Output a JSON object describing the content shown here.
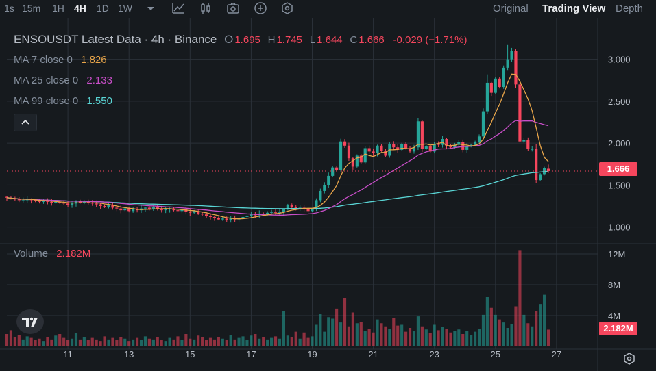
{
  "toolbar": {
    "timeframes": [
      "1s",
      "15m",
      "1H",
      "4H",
      "1D",
      "1W"
    ],
    "active_timeframe": "4H",
    "views": [
      "Original",
      "Trading View",
      "Depth"
    ],
    "active_view": "Trading View",
    "tools": [
      "chevron-down-icon",
      "indicator-icon",
      "candle-type-icon",
      "camera-icon",
      "plus-circle-icon",
      "settings-hex-icon"
    ]
  },
  "legend": {
    "title": "ENSOUSDT Latest Data · 4h · Binance",
    "ohlc": {
      "o_label": "O",
      "o": "1.695",
      "h_label": "H",
      "h": "1.745",
      "l_label": "L",
      "l": "1.644",
      "c_label": "C",
      "c": "1.666",
      "change": "-0.029 (−1.71%)"
    },
    "ma7": {
      "label": "MA 7 close 0",
      "value": "1.826",
      "color": "#e8a54a"
    },
    "ma25": {
      "label": "MA 25 close 0",
      "value": "2.133",
      "color": "#c84ec8"
    },
    "ma99": {
      "label": "MA 99 close 0",
      "value": "1.550",
      "color": "#5ad6d6"
    },
    "volume_label": "Volume",
    "volume_value": "2.182M"
  },
  "price_badge": "1.666",
  "volume_badge": "2.182M",
  "colors": {
    "up": "#26a69a",
    "down": "#f6465d",
    "bg": "#161a1e",
    "grid": "#2b3139"
  },
  "chart_data": {
    "type": "candlestick",
    "x_tick_labels": [
      "11",
      "13",
      "15",
      "17",
      "19",
      "21",
      "23",
      "25",
      "27"
    ],
    "x_ticks_at_candle": [
      15,
      30,
      45,
      60,
      75,
      90,
      105,
      120,
      135
    ],
    "y_ticks": [
      1.0,
      1.5,
      2.0,
      2.5,
      3.0
    ],
    "y_tick_labels": [
      "1.000",
      "1.500",
      "2.000",
      "2.500",
      "3.000"
    ],
    "ylim": [
      0.85,
      3.25
    ],
    "volume_ticks": [
      4,
      8,
      12
    ],
    "volume_tick_labels": [
      "4M",
      "8M",
      "12M"
    ],
    "volume_max": 12.8,
    "last_price": 1.666,
    "closes": [
      1.35,
      1.34,
      1.33,
      1.32,
      1.32,
      1.33,
      1.32,
      1.31,
      1.3,
      1.31,
      1.3,
      1.29,
      1.3,
      1.29,
      1.28,
      1.26,
      1.28,
      1.31,
      1.29,
      1.3,
      1.29,
      1.28,
      1.27,
      1.25,
      1.24,
      1.26,
      1.23,
      1.22,
      1.2,
      1.22,
      1.19,
      1.21,
      1.2,
      1.22,
      1.23,
      1.21,
      1.24,
      1.22,
      1.2,
      1.21,
      1.22,
      1.2,
      1.19,
      1.21,
      1.18,
      1.17,
      1.19,
      1.16,
      1.15,
      1.13,
      1.12,
      1.11,
      1.09,
      1.1,
      1.08,
      1.1,
      1.09,
      1.11,
      1.12,
      1.13,
      1.15,
      1.14,
      1.16,
      1.15,
      1.17,
      1.18,
      1.17,
      1.18,
      1.21,
      1.26,
      1.24,
      1.22,
      1.23,
      1.21,
      1.19,
      1.21,
      1.32,
      1.43,
      1.5,
      1.61,
      1.71,
      1.68,
      2.02,
      1.97,
      1.82,
      1.72,
      1.85,
      1.77,
      1.94,
      1.9,
      1.88,
      1.97,
      1.91,
      1.85,
      1.99,
      1.95,
      1.92,
      1.99,
      1.94,
      1.9,
      1.95,
      2.26,
      1.93,
      1.96,
      1.9,
      1.99,
      1.98,
      2.05,
      1.97,
      1.95,
      1.98,
      2.01,
      1.92,
      1.96,
      1.98,
      2.01,
      2.08,
      2.38,
      2.72,
      2.6,
      2.77,
      2.67,
      2.9,
      3.0,
      3.1,
      2.7,
      2.02,
      2.04,
      1.93,
      1.93,
      1.56,
      1.63,
      1.7,
      1.666
    ],
    "volumes_M": [
      1.6,
      2.1,
      1.2,
      1.5,
      0.9,
      1.3,
      1.1,
      0.8,
      1.0,
      0.7,
      1.2,
      0.9,
      1.4,
      1.6,
      1.1,
      0.8,
      1.0,
      1.7,
      0.9,
      1.2,
      0.8,
      1.1,
      0.9,
      0.7,
      1.3,
      0.9,
      1.1,
      0.8,
      1.2,
      1.0,
      0.7,
      0.9,
      1.1,
      0.8,
      1.3,
      1.0,
      0.9,
      1.2,
      0.8,
      0.7,
      1.1,
      0.9,
      1.3,
      0.8,
      1.6,
      1.0,
      0.9,
      1.4,
      1.2,
      0.8,
      1.1,
      0.9,
      1.2,
      1.0,
      0.8,
      1.5,
      0.9,
      1.1,
      1.3,
      0.8,
      1.4,
      1.6,
      1.0,
      1.2,
      0.9,
      1.1,
      1.3,
      1.0,
      4.6,
      1.4,
      1.2,
      1.9,
      1.0,
      1.8,
      1.1,
      1.3,
      2.8,
      4.2,
      1.9,
      3.8,
      3.6,
      4.9,
      3.1,
      6.3,
      2.6,
      4.4,
      3.0,
      3.2,
      2.0,
      2.3,
      1.8,
      3.5,
      3.0,
      2.6,
      2.3,
      3.7,
      2.7,
      2.8,
      1.9,
      2.4,
      2.0,
      3.9,
      2.6,
      2.2,
      1.7,
      2.8,
      2.1,
      2.5,
      2.3,
      1.8,
      2.0,
      2.2,
      1.6,
      2.0,
      1.5,
      1.9,
      2.3,
      4.1,
      6.4,
      5.0,
      4.1,
      3.5,
      3.1,
      2.4,
      2.9,
      5.2,
      12.5,
      4.1,
      3.0,
      2.6,
      4.6,
      5.5,
      6.7,
      2.18
    ]
  }
}
